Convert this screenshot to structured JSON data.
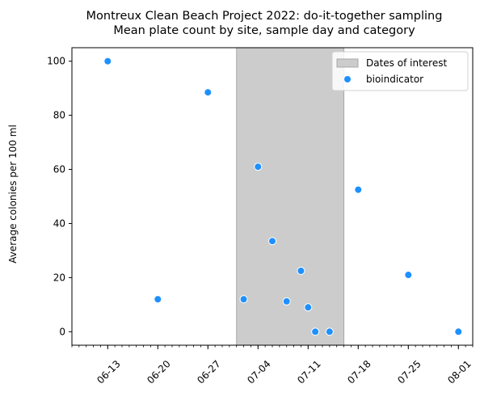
{
  "chart_data": {
    "type": "scatter",
    "title_line1": "Montreux Clean Beach Project 2022: do-it-together sampling",
    "title_line2": "Mean plate count by site, sample day and category",
    "xlabel": "",
    "ylabel": "Average colonies per 100 ml",
    "xlim": [
      "2022-06-08",
      "2022-08-03"
    ],
    "ylim": [
      -5,
      105
    ],
    "x_ticks": [
      {
        "date": "2022-06-13",
        "label": "06-13"
      },
      {
        "date": "2022-06-20",
        "label": "06-20"
      },
      {
        "date": "2022-06-27",
        "label": "06-27"
      },
      {
        "date": "2022-07-04",
        "label": "07-04"
      },
      {
        "date": "2022-07-11",
        "label": "07-11"
      },
      {
        "date": "2022-07-18",
        "label": "07-18"
      },
      {
        "date": "2022-07-25",
        "label": "07-25"
      },
      {
        "date": "2022-08-01",
        "label": "08-01"
      }
    ],
    "y_ticks": [
      0,
      20,
      40,
      60,
      80,
      100
    ],
    "span": {
      "label": "Dates of interest",
      "start": "2022-07-01",
      "end": "2022-07-16",
      "color": "#cccccc"
    },
    "series": [
      {
        "name": "bioindicator",
        "color": "#1e90ff",
        "points": [
          {
            "x": "2022-06-13",
            "y": 100
          },
          {
            "x": "2022-06-20",
            "y": 12
          },
          {
            "x": "2022-06-27",
            "y": 88.5
          },
          {
            "x": "2022-07-02",
            "y": 12
          },
          {
            "x": "2022-07-04",
            "y": 61
          },
          {
            "x": "2022-07-06",
            "y": 33.5
          },
          {
            "x": "2022-07-08",
            "y": 11.2
          },
          {
            "x": "2022-07-10",
            "y": 22.5
          },
          {
            "x": "2022-07-11",
            "y": 9
          },
          {
            "x": "2022-07-12",
            "y": 0
          },
          {
            "x": "2022-07-14",
            "y": 0
          },
          {
            "x": "2022-07-18",
            "y": 52.5
          },
          {
            "x": "2022-07-25",
            "y": 21
          },
          {
            "x": "2022-08-01",
            "y": 0
          }
        ]
      }
    ],
    "legend_position": "top-right",
    "grid": false
  }
}
